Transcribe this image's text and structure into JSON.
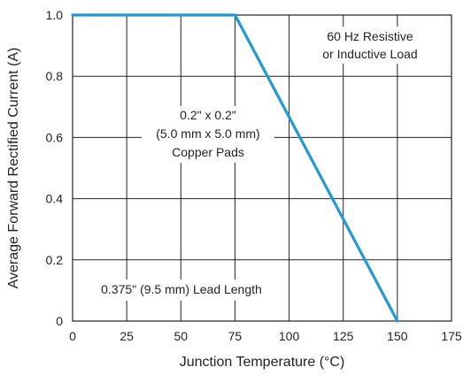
{
  "chart_data": {
    "type": "line",
    "xlabel": "Junction Temperature (°C)",
    "ylabel": "Average Forward Rectified Current (A)",
    "xlim": [
      0,
      175
    ],
    "ylim": [
      0,
      1.0
    ],
    "x_ticks": [
      "0",
      "25",
      "50",
      "75",
      "100",
      "125",
      "150",
      "175"
    ],
    "y_ticks": [
      "0",
      "0.2",
      "0.4",
      "0.6",
      "0.8",
      "1.0"
    ],
    "x_tick_values": [
      0,
      25,
      50,
      75,
      100,
      125,
      150,
      175
    ],
    "y_tick_values": [
      0,
      0.2,
      0.4,
      0.6,
      0.8,
      1.0
    ],
    "grid": true,
    "series": [
      {
        "color": "#1f9ad6",
        "points": [
          {
            "x": 0,
            "y": 1.0
          },
          {
            "x": 75,
            "y": 1.0
          },
          {
            "x": 150,
            "y": 0
          }
        ]
      }
    ],
    "annotations": [
      {
        "key": "load",
        "lines": [
          "60 Hz Resistive",
          "or Inductive Load"
        ]
      },
      {
        "key": "pads",
        "lines": [
          "0.2\" x 0.2\"",
          "(5.0 mm x 5.0 mm)",
          "Copper Pads"
        ]
      },
      {
        "key": "lead",
        "lines": [
          "0.375\" (9.5 mm) Lead Length"
        ]
      }
    ]
  }
}
